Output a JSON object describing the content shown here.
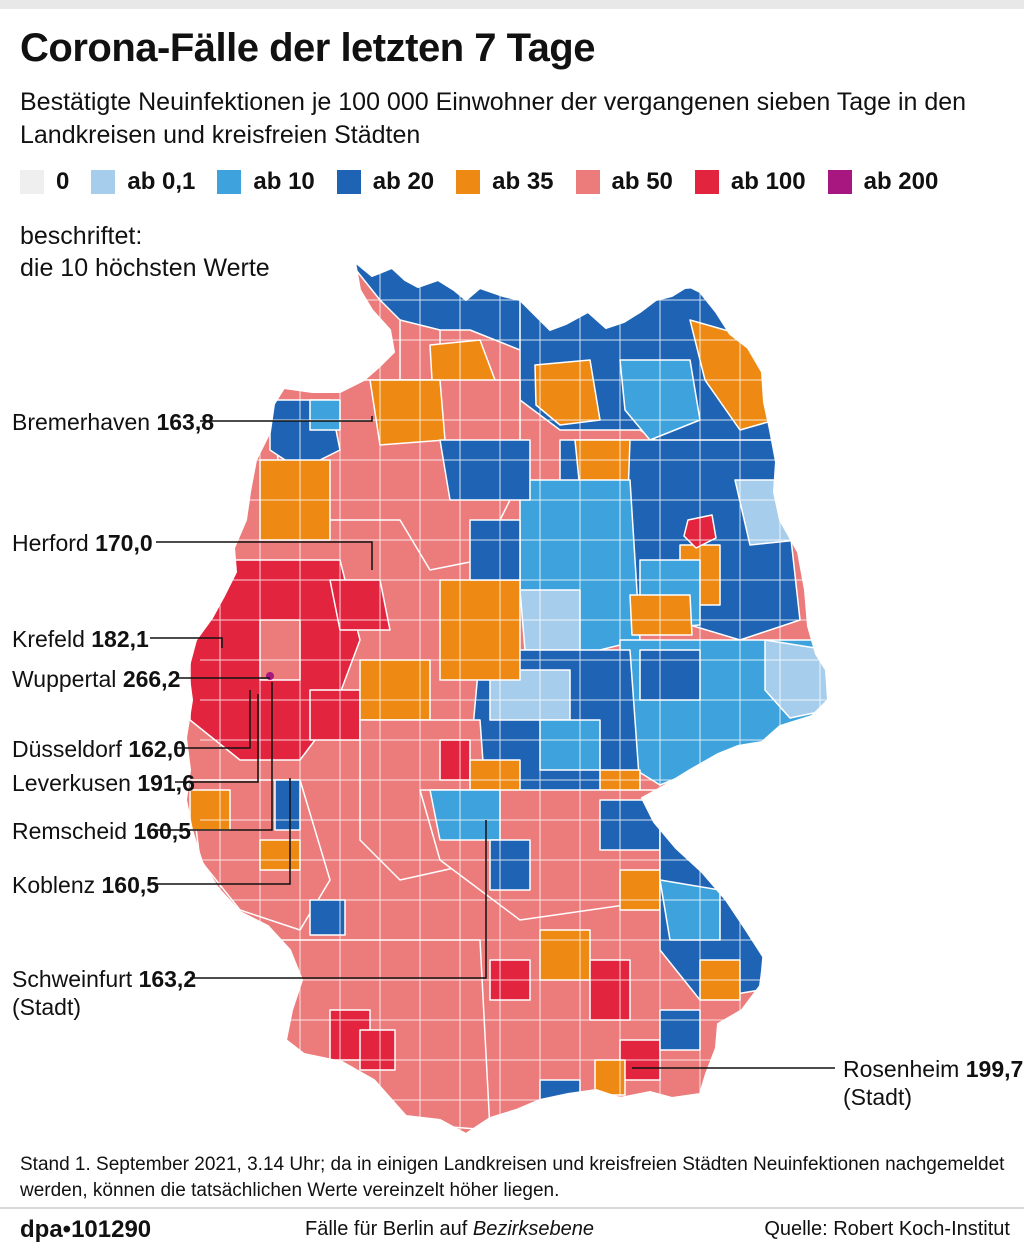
{
  "header": {
    "title": "Corona-Fälle der letzten 7 Tage",
    "subtitle": "Bestätigte Neuinfektionen je 100 000 Einwohner der vergangenen sieben Tage in den Landkreisen und kreisfreien Städten"
  },
  "legend": [
    {
      "label": "0",
      "color": "#efefef"
    },
    {
      "label": "ab 0,1",
      "color": "#a6cdec"
    },
    {
      "label": "ab 10",
      "color": "#3ea3dd"
    },
    {
      "label": "ab 20",
      "color": "#1f64b4"
    },
    {
      "label": "ab 35",
      "color": "#ee8a13"
    },
    {
      "label": "ab 50",
      "color": "#ec7b7b"
    },
    {
      "label": "ab 100",
      "color": "#e2243f"
    },
    {
      "label": "ab 200",
      "color": "#a7177f"
    }
  ],
  "note": {
    "line1": "beschriftet:",
    "line2": "die 10 höchsten Werte"
  },
  "callouts": [
    {
      "name": "Bremerhaven",
      "value": "163,8",
      "sub": ""
    },
    {
      "name": "Herford",
      "value": "170,0",
      "sub": ""
    },
    {
      "name": "Krefeld",
      "value": "182,1",
      "sub": ""
    },
    {
      "name": "Wuppertal",
      "value": "266,2",
      "sub": ""
    },
    {
      "name": "Düsseldorf",
      "value": "162,0",
      "sub": ""
    },
    {
      "name": "Leverkusen",
      "value": "191,6",
      "sub": ""
    },
    {
      "name": "Remscheid",
      "value": "160,5",
      "sub": ""
    },
    {
      "name": "Koblenz",
      "value": "160,5",
      "sub": ""
    },
    {
      "name": "Schweinfurt",
      "value": "163,2",
      "sub": "(Stadt)"
    },
    {
      "name": "Rosenheim",
      "value": "199,7",
      "sub": "(Stadt)"
    }
  ],
  "footer": {
    "stand": "Stand 1. September 2021, 3.14 Uhr; da in einigen Landkreisen und kreisfreien Städten Neuinfektionen nachgemeldet werden, können die tatsächlichen Werte vereinzelt höher liegen.",
    "brand": "dpa•101290",
    "berlin_prefix": "Fälle für Berlin auf ",
    "berlin_italic": "Bezirksebene",
    "source": "Quelle: Robert Koch-Institut"
  }
}
